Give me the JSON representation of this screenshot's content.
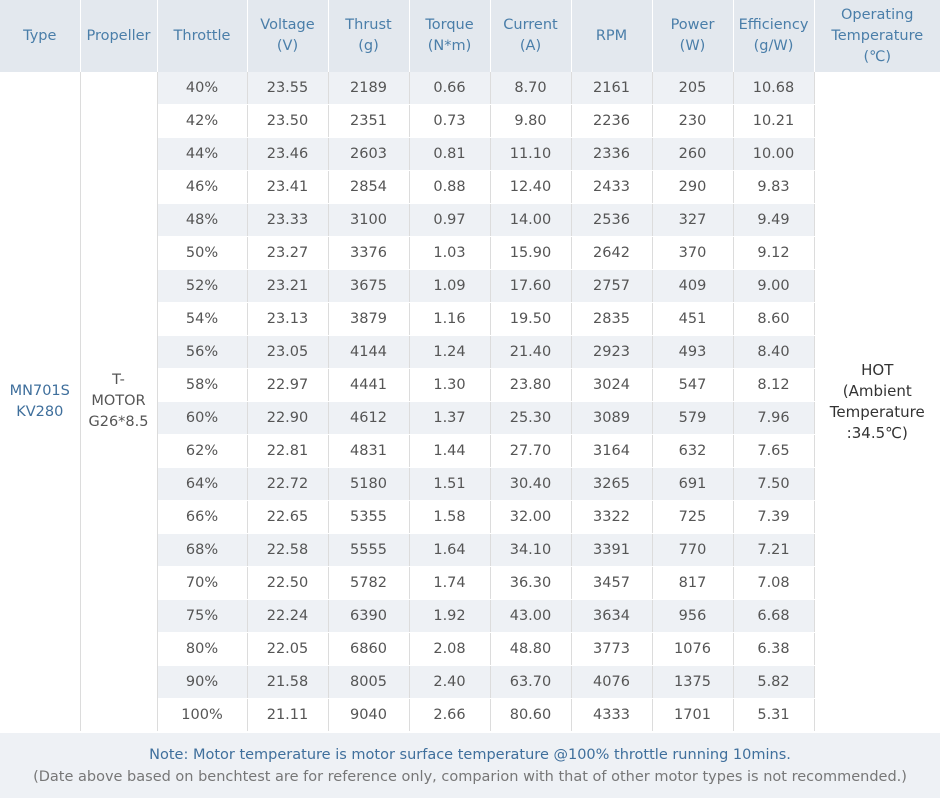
{
  "headers": {
    "type": "Type",
    "propeller": "Propeller",
    "throttle": "Throttle",
    "voltage": "Voltage",
    "voltage_unit": "(V)",
    "thrust": "Thrust",
    "thrust_unit": "(g)",
    "torque": "Torque",
    "torque_unit": "(N*m)",
    "current": "Current",
    "current_unit": "(A)",
    "rpm": "RPM",
    "power": "Power",
    "power_unit": "(W)",
    "efficiency": "Efficiency",
    "efficiency_unit": "(g/W)",
    "temp": "Operating",
    "temp_2": "Temperature",
    "temp_unit": "(℃)"
  },
  "type": {
    "line1": "MN701S",
    "line2": "KV280"
  },
  "propeller": {
    "line1": "T-",
    "line2": "MOTOR",
    "line3": "G26*8.5"
  },
  "temperature": {
    "line1": "HOT",
    "line2": "(Ambient",
    "line3": "Temperature",
    "line4": ":34.5℃)"
  },
  "rows": [
    [
      "40%",
      "23.55",
      "2189",
      "0.66",
      "8.70",
      "2161",
      "205",
      "10.68"
    ],
    [
      "42%",
      "23.50",
      "2351",
      "0.73",
      "9.80",
      "2236",
      "230",
      "10.21"
    ],
    [
      "44%",
      "23.46",
      "2603",
      "0.81",
      "11.10",
      "2336",
      "260",
      "10.00"
    ],
    [
      "46%",
      "23.41",
      "2854",
      "0.88",
      "12.40",
      "2433",
      "290",
      "9.83"
    ],
    [
      "48%",
      "23.33",
      "3100",
      "0.97",
      "14.00",
      "2536",
      "327",
      "9.49"
    ],
    [
      "50%",
      "23.27",
      "3376",
      "1.03",
      "15.90",
      "2642",
      "370",
      "9.12"
    ],
    [
      "52%",
      "23.21",
      "3675",
      "1.09",
      "17.60",
      "2757",
      "409",
      "9.00"
    ],
    [
      "54%",
      "23.13",
      "3879",
      "1.16",
      "19.50",
      "2835",
      "451",
      "8.60"
    ],
    [
      "56%",
      "23.05",
      "4144",
      "1.24",
      "21.40",
      "2923",
      "493",
      "8.40"
    ],
    [
      "58%",
      "22.97",
      "4441",
      "1.30",
      "23.80",
      "3024",
      "547",
      "8.12"
    ],
    [
      "60%",
      "22.90",
      "4612",
      "1.37",
      "25.30",
      "3089",
      "579",
      "7.96"
    ],
    [
      "62%",
      "22.81",
      "4831",
      "1.44",
      "27.70",
      "3164",
      "632",
      "7.65"
    ],
    [
      "64%",
      "22.72",
      "5180",
      "1.51",
      "30.40",
      "3265",
      "691",
      "7.50"
    ],
    [
      "66%",
      "22.65",
      "5355",
      "1.58",
      "32.00",
      "3322",
      "725",
      "7.39"
    ],
    [
      "68%",
      "22.58",
      "5555",
      "1.64",
      "34.10",
      "3391",
      "770",
      "7.21"
    ],
    [
      "70%",
      "22.50",
      "5782",
      "1.74",
      "36.30",
      "3457",
      "817",
      "7.08"
    ],
    [
      "75%",
      "22.24",
      "6390",
      "1.92",
      "43.00",
      "3634",
      "956",
      "6.68"
    ],
    [
      "80%",
      "22.05",
      "6860",
      "2.08",
      "48.80",
      "3773",
      "1076",
      "6.38"
    ],
    [
      "90%",
      "21.58",
      "8005",
      "2.40",
      "63.70",
      "4076",
      "1375",
      "5.82"
    ],
    [
      "100%",
      "21.11",
      "9040",
      "2.66",
      "80.60",
      "4333",
      "1701",
      "5.31"
    ]
  ],
  "note": {
    "line1": "Note: Motor temperature is motor surface temperature @100% throttle running 10mins.",
    "line2": "(Date above based on benchtest are for reference only, comparion with that of other motor types is not recommended.)"
  },
  "colors": {
    "header_bg": "#e3e8ee",
    "header_text": "#4a7ea9",
    "stripe": "#eef1f5",
    "note_text": "#3f6f9c"
  }
}
